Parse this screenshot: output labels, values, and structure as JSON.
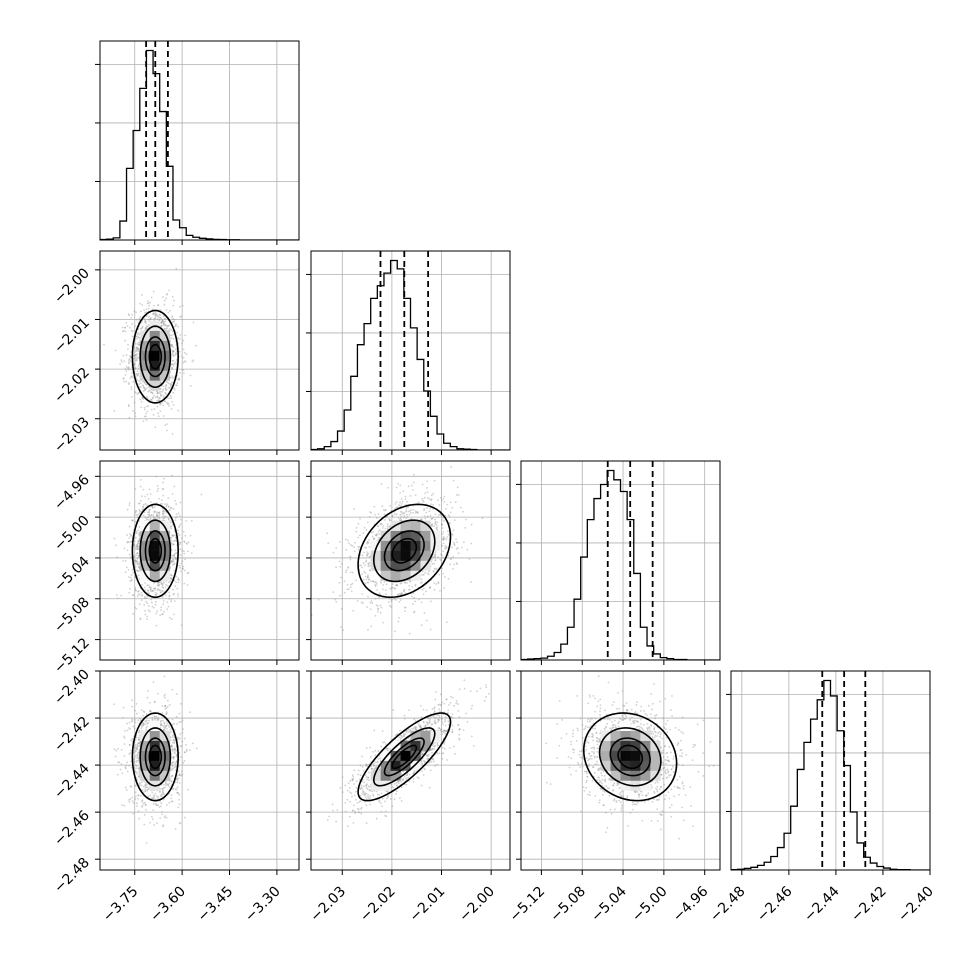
{
  "chart_data": {
    "type": "corner",
    "grid": true,
    "parameters": 4,
    "dims": [
      {
        "range": [
          -3.86,
          -3.23
        ],
        "ticks": [
          -3.75,
          -3.6,
          -3.45,
          -3.3
        ],
        "tick_labels": [
          "−3.75",
          "−3.60",
          "−3.45",
          "−3.30"
        ],
        "quantiles": [
          -3.714,
          -3.685,
          -3.645
        ],
        "hist_counts": [
          2,
          4,
          10,
          90,
          340,
          520,
          720,
          900,
          790,
          610,
          350,
          95,
          58,
          22,
          13,
          8,
          5,
          3,
          2,
          1,
          1,
          0,
          0,
          0,
          0,
          0,
          0,
          0,
          0,
          0
        ]
      },
      {
        "range": [
          -2.0363,
          -1.9962
        ],
        "ticks": [
          -2.03,
          -2.02,
          -2.01,
          -2.0
        ],
        "tick_labels": [
          "−2.03",
          "−2.02",
          "−2.01",
          "−2.00"
        ],
        "quantiles": [
          -2.0223,
          -2.0175,
          -2.0127
        ],
        "hist_counts": [
          1,
          3,
          8,
          20,
          45,
          95,
          175,
          250,
          300,
          360,
          390,
          420,
          450,
          430,
          360,
          290,
          215,
          140,
          80,
          38,
          16,
          8,
          3,
          2,
          1,
          0,
          0,
          0,
          0,
          0
        ]
      },
      {
        "range": [
          -5.14,
          -4.945
        ],
        "ticks": [
          -5.12,
          -5.08,
          -5.04,
          -5.0,
          -4.96
        ],
        "tick_labels": [
          "−5.12",
          "−5.08",
          "−5.04",
          "−5.00",
          "−4.96"
        ],
        "quantiles": [
          -5.055,
          -5.033,
          -5.011
        ],
        "hist_counts": [
          1,
          2,
          3,
          4,
          8,
          16,
          34,
          70,
          130,
          220,
          300,
          345,
          375,
          405,
          385,
          360,
          300,
          185,
          70,
          30,
          13,
          5,
          3,
          1,
          1,
          0,
          0,
          0,
          0,
          0
        ]
      },
      {
        "range": [
          -2.4846,
          -2.4
        ],
        "ticks": [
          -2.48,
          -2.46,
          -2.44,
          -2.42,
          -2.4
        ],
        "tick_labels": [
          "−2.48",
          "−2.46",
          "−2.44",
          "−2.42",
          "−2.40"
        ],
        "quantiles": [
          -2.4458,
          -2.4365,
          -2.4275
        ],
        "hist_counts": [
          1,
          2,
          4,
          7,
          12,
          20,
          35,
          58,
          95,
          165,
          260,
          330,
          390,
          440,
          490,
          450,
          360,
          270,
          150,
          70,
          33,
          18,
          9,
          5,
          2,
          1,
          1,
          0,
          0,
          0
        ]
      }
    ],
    "joint": {
      "1_0": {
        "mean": [
          -3.685,
          -2.0175
        ],
        "sd": [
          0.035,
          0.0045
        ],
        "corr": 0.0
      },
      "2_0": {
        "mean": [
          -3.685,
          -5.033
        ],
        "sd": [
          0.035,
          0.022
        ],
        "corr": 0.0
      },
      "2_1": {
        "mean": [
          -2.0175,
          -5.033
        ],
        "sd": [
          0.0045,
          0.022
        ],
        "corr": 0.3
      },
      "3_0": {
        "mean": [
          -3.685,
          -2.4365
        ],
        "sd": [
          0.035,
          0.009
        ],
        "corr": 0.0
      },
      "3_1": {
        "mean": [
          -2.0175,
          -2.4365
        ],
        "sd": [
          0.0045,
          0.009
        ],
        "corr": 0.8
      },
      "3_2": {
        "mean": [
          -5.033,
          -2.4365
        ],
        "sd": [
          0.022,
          0.009
        ],
        "corr": -0.15
      }
    },
    "contour_levels_sigma": [
      0.5,
      1.0,
      1.5,
      2.0
    ],
    "colors": {
      "axis": "#000000",
      "grid": "#b0b0b0",
      "scatter": "#9a9a9a",
      "line": "#000000"
    }
  }
}
